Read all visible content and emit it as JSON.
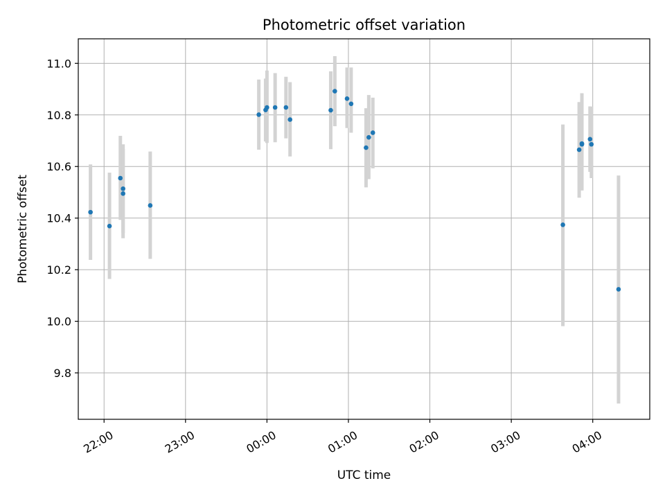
{
  "chart_data": {
    "type": "scatter",
    "title": "Photometric offset variation",
    "xlabel": "UTC time",
    "ylabel": "Photometric offset",
    "xlim": [
      "21:41",
      "04:42"
    ],
    "ylim": [
      9.62,
      11.095
    ],
    "grid": true,
    "x_ticks": [
      {
        "value": "22:00",
        "label": "22:00"
      },
      {
        "value": "23:00",
        "label": "23:00"
      },
      {
        "value": "00:00",
        "label": "00:00"
      },
      {
        "value": "01:00",
        "label": "01:00"
      },
      {
        "value": "02:00",
        "label": "02:00"
      },
      {
        "value": "03:00",
        "label": "03:00"
      },
      {
        "value": "04:00",
        "label": "04:00"
      }
    ],
    "y_ticks": [
      {
        "value": 9.8,
        "label": "9.8"
      },
      {
        "value": 10.0,
        "label": "10.0"
      },
      {
        "value": 10.2,
        "label": "10.2"
      },
      {
        "value": 10.4,
        "label": "10.4"
      },
      {
        "value": 10.6,
        "label": "10.6"
      },
      {
        "value": 10.8,
        "label": "10.8"
      },
      {
        "value": 11.0,
        "label": "11.0"
      }
    ],
    "colors": {
      "point": "#1f77b4",
      "errorbar": "#d3d3d3",
      "grid": "#b0b0b0",
      "axis": "#000000"
    },
    "series": [
      {
        "points": [
          {
            "x": "21:50",
            "y": 10.423,
            "ylow": 10.238,
            "yhigh": 10.608
          },
          {
            "x": "22:04",
            "y": 10.369,
            "ylow": 10.164,
            "yhigh": 10.576
          },
          {
            "x": "22:12",
            "y": 10.555,
            "ylow": 10.393,
            "yhigh": 10.719
          },
          {
            "x": "22:14",
            "y": 10.495,
            "ylow": 10.322,
            "yhigh": 10.668
          },
          {
            "x": "22:14",
            "y": 10.514,
            "ylow": 10.342,
            "yhigh": 10.686
          },
          {
            "x": "22:34",
            "y": 10.449,
            "ylow": 10.242,
            "yhigh": 10.658
          },
          {
            "x": "23:54",
            "y": 10.801,
            "ylow": 10.665,
            "yhigh": 10.937
          },
          {
            "x": "23:59",
            "y": 10.819,
            "ylow": 10.697,
            "yhigh": 10.941
          },
          {
            "x": "00:00",
            "y": 10.829,
            "ylow": 10.691,
            "yhigh": 10.972
          },
          {
            "x": "00:06",
            "y": 10.829,
            "ylow": 10.694,
            "yhigh": 10.962
          },
          {
            "x": "00:14",
            "y": 10.829,
            "ylow": 10.709,
            "yhigh": 10.948
          },
          {
            "x": "00:17",
            "y": 10.782,
            "ylow": 10.639,
            "yhigh": 10.927
          },
          {
            "x": "00:47",
            "y": 10.818,
            "ylow": 10.667,
            "yhigh": 10.969
          },
          {
            "x": "00:50",
            "y": 10.892,
            "ylow": 10.756,
            "yhigh": 11.028
          },
          {
            "x": "00:59",
            "y": 10.863,
            "ylow": 10.749,
            "yhigh": 10.984
          },
          {
            "x": "01:02",
            "y": 10.843,
            "ylow": 10.731,
            "yhigh": 10.984
          },
          {
            "x": "01:13",
            "y": 10.673,
            "ylow": 10.519,
            "yhigh": 10.826
          },
          {
            "x": "01:15",
            "y": 10.713,
            "ylow": 10.551,
            "yhigh": 10.877
          },
          {
            "x": "01:18",
            "y": 10.731,
            "ylow": 10.593,
            "yhigh": 10.867
          },
          {
            "x": "03:38",
            "y": 10.374,
            "ylow": 9.981,
            "yhigh": 10.763
          },
          {
            "x": "03:50",
            "y": 10.665,
            "ylow": 10.479,
            "yhigh": 10.85
          },
          {
            "x": "03:52",
            "y": 10.689,
            "ylow": 10.507,
            "yhigh": 10.884
          },
          {
            "x": "03:52",
            "y": 10.686,
            "ylow": 10.51,
            "yhigh": 10.859
          },
          {
            "x": "03:58",
            "y": 10.706,
            "ylow": 10.579,
            "yhigh": 10.833
          },
          {
            "x": "03:59",
            "y": 10.686,
            "ylow": 10.555,
            "yhigh": 10.832
          },
          {
            "x": "04:19",
            "y": 10.124,
            "ylow": 9.681,
            "yhigh": 10.565
          }
        ]
      }
    ]
  }
}
